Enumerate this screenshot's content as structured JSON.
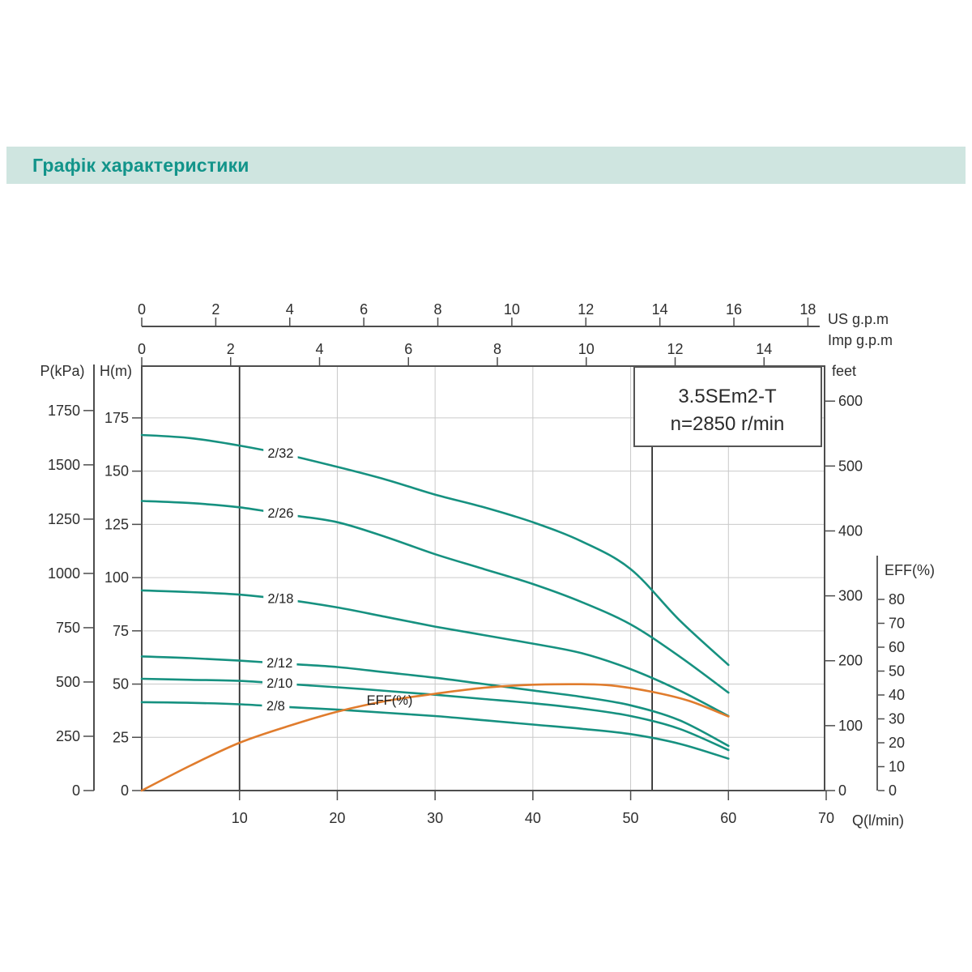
{
  "page": {
    "title": "Графік характеристики"
  },
  "chart_data": {
    "type": "line",
    "title": "Графік характеристики",
    "model_box": {
      "line1": "3.5SEm2-T",
      "line2": "n=2850 r/min"
    },
    "axes": {
      "us_gpm": {
        "label": "US  g.p.m",
        "ticks": [
          0,
          2,
          4,
          6,
          8,
          10,
          12,
          14,
          16,
          18
        ],
        "range": [
          0,
          18
        ]
      },
      "imp_gpm": {
        "label": "Imp  g.p.m",
        "ticks": [
          0,
          2,
          4,
          6,
          8,
          10,
          12,
          14
        ],
        "range": [
          0,
          14
        ]
      },
      "q_lmin": {
        "label": "Q(l/min)",
        "ticks": [
          10,
          20,
          30,
          40,
          50,
          60,
          70
        ],
        "range": [
          0,
          70
        ]
      },
      "h_m": {
        "label": "H(m)",
        "ticks": [
          0,
          25,
          50,
          75,
          100,
          125,
          150,
          175
        ],
        "range": [
          0,
          199
        ]
      },
      "p_kpa": {
        "label": "P(kPa)",
        "ticks": [
          0,
          250,
          500,
          750,
          1000,
          1250,
          1500,
          1750
        ],
        "range": [
          0,
          1950
        ]
      },
      "feet": {
        "label": "feet",
        "ticks": [
          0,
          100,
          200,
          300,
          400,
          500,
          600
        ],
        "range": [
          0,
          650
        ]
      },
      "eff_pct": {
        "label": "EFF(%)",
        "ticks": [
          0,
          10,
          20,
          30,
          40,
          50,
          60,
          70,
          80
        ],
        "range": [
          0,
          80
        ]
      }
    },
    "grid": {
      "vertical_every_lmin": 10,
      "horizontal_every_m": 25
    },
    "operating_range_q": [
      10,
      52.2
    ],
    "eff_plot_label": "EFF(%)",
    "series": [
      {
        "name": "2/32",
        "points": [
          [
            0,
            167
          ],
          [
            5,
            165.5
          ],
          [
            10,
            162
          ],
          [
            15,
            157.5
          ],
          [
            20,
            152
          ],
          [
            25,
            146
          ],
          [
            30,
            139
          ],
          [
            35,
            133
          ],
          [
            40,
            126
          ],
          [
            45,
            117
          ],
          [
            50,
            104
          ],
          [
            55,
            80
          ],
          [
            60,
            59
          ]
        ]
      },
      {
        "name": "2/26",
        "points": [
          [
            0,
            136
          ],
          [
            5,
            135
          ],
          [
            10,
            133
          ],
          [
            15,
            129.5
          ],
          [
            20,
            126
          ],
          [
            25,
            119
          ],
          [
            30,
            111
          ],
          [
            35,
            104
          ],
          [
            40,
            97
          ],
          [
            45,
            88.5
          ],
          [
            50,
            78
          ],
          [
            55,
            63
          ],
          [
            60,
            46
          ]
        ]
      },
      {
        "name": "2/18",
        "points": [
          [
            0,
            94
          ],
          [
            5,
            93.2
          ],
          [
            10,
            92
          ],
          [
            15,
            89.5
          ],
          [
            20,
            86
          ],
          [
            25,
            81.5
          ],
          [
            30,
            77
          ],
          [
            35,
            73
          ],
          [
            40,
            69
          ],
          [
            45,
            64.5
          ],
          [
            50,
            57
          ],
          [
            55,
            47
          ],
          [
            60,
            35
          ]
        ]
      },
      {
        "name": "2/12",
        "points": [
          [
            0,
            63
          ],
          [
            5,
            62.2
          ],
          [
            10,
            61
          ],
          [
            15,
            59.5
          ],
          [
            20,
            58
          ],
          [
            25,
            55.5
          ],
          [
            30,
            53
          ],
          [
            35,
            50
          ],
          [
            40,
            47
          ],
          [
            45,
            44
          ],
          [
            50,
            40
          ],
          [
            55,
            33
          ],
          [
            60,
            21
          ]
        ]
      },
      {
        "name": "2/10",
        "points": [
          [
            0,
            52.5
          ],
          [
            5,
            52
          ],
          [
            10,
            51.5
          ],
          [
            15,
            50
          ],
          [
            20,
            48.5
          ],
          [
            25,
            46.8
          ],
          [
            30,
            45
          ],
          [
            35,
            43
          ],
          [
            40,
            41
          ],
          [
            45,
            38.5
          ],
          [
            50,
            35
          ],
          [
            55,
            29
          ],
          [
            60,
            19
          ]
        ]
      },
      {
        "name": "2/8",
        "points": [
          [
            0,
            41.5
          ],
          [
            5,
            41.2
          ],
          [
            10,
            40.5
          ],
          [
            15,
            39.2
          ],
          [
            20,
            38
          ],
          [
            25,
            36.5
          ],
          [
            30,
            35
          ],
          [
            35,
            33
          ],
          [
            40,
            31
          ],
          [
            45,
            29
          ],
          [
            50,
            26.5
          ],
          [
            55,
            22
          ],
          [
            60,
            15
          ]
        ]
      }
    ],
    "eff_series": {
      "name": "EFF(%)",
      "points": [
        [
          0,
          0
        ],
        [
          5,
          10.5
        ],
        [
          10,
          20
        ],
        [
          15,
          27
        ],
        [
          20,
          33
        ],
        [
          25,
          37.5
        ],
        [
          30,
          40.5
        ],
        [
          35,
          43
        ],
        [
          40,
          44.3
        ],
        [
          45,
          44.5
        ],
        [
          48,
          44
        ],
        [
          52,
          41.5
        ],
        [
          56,
          37.5
        ],
        [
          60,
          31
        ]
      ]
    },
    "colors": {
      "banner_bg": "#cfe5e0",
      "title": "#12948a",
      "curve": "#169180",
      "eff": "#e07c2d",
      "grid": "#c9c9c9",
      "axis": "#4d4d4d",
      "dark_line": "#2d2d2d",
      "text": "#2e2e2e"
    }
  }
}
